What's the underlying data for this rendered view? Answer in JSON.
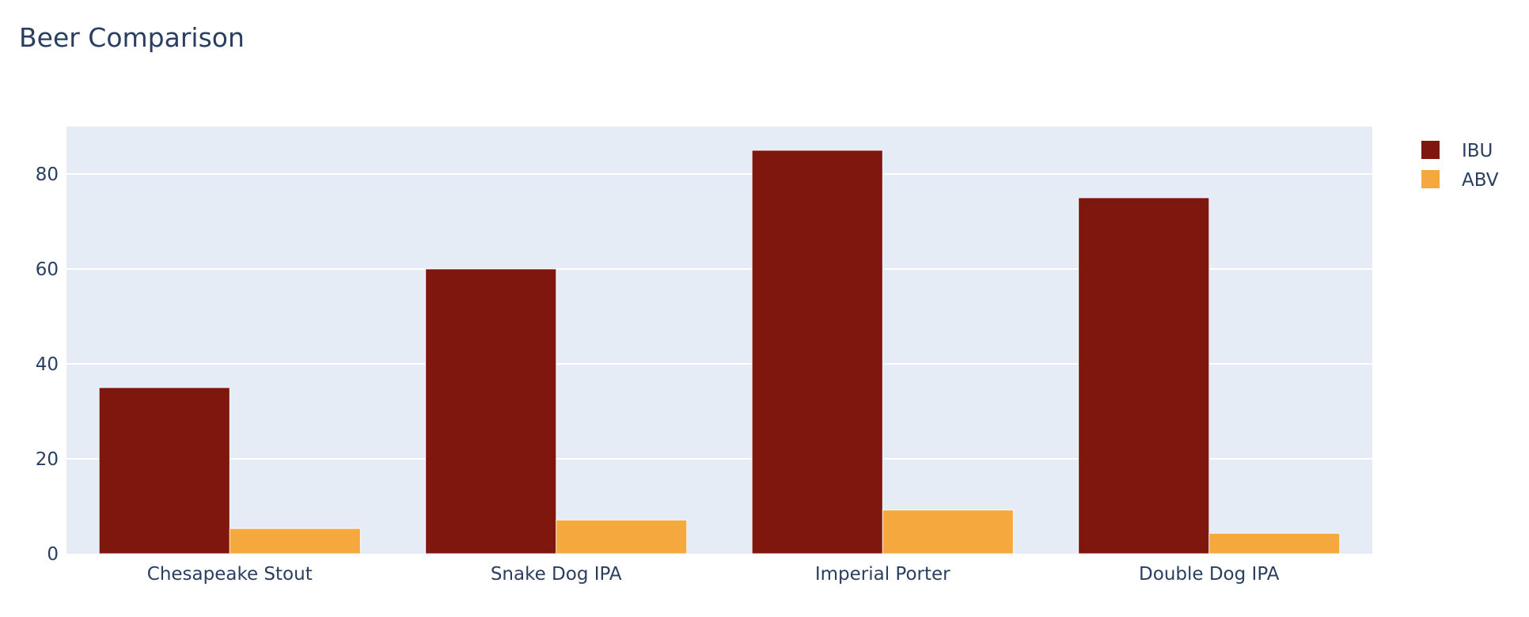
{
  "chart_data": {
    "type": "bar",
    "title": "Beer Comparison",
    "categories": [
      "Chesapeake Stout",
      "Snake Dog IPA",
      "Imperial Porter",
      "Double Dog IPA"
    ],
    "series": [
      {
        "name": "IBU",
        "values": [
          35,
          60,
          85,
          75
        ],
        "color": "#7f170e"
      },
      {
        "name": "ABV",
        "values": [
          5.3,
          7.1,
          9.2,
          4.3
        ],
        "color": "#f4a83e"
      }
    ],
    "ylim": [
      0,
      90
    ],
    "yticks": [
      0,
      20,
      40,
      60,
      80
    ],
    "ytick_labels": [
      "0",
      "20",
      "40",
      "60",
      "80"
    ],
    "grid": true,
    "legend_position": "top-right",
    "plot_background": "#e5ecf6",
    "text_color": "#2a3f5f"
  }
}
